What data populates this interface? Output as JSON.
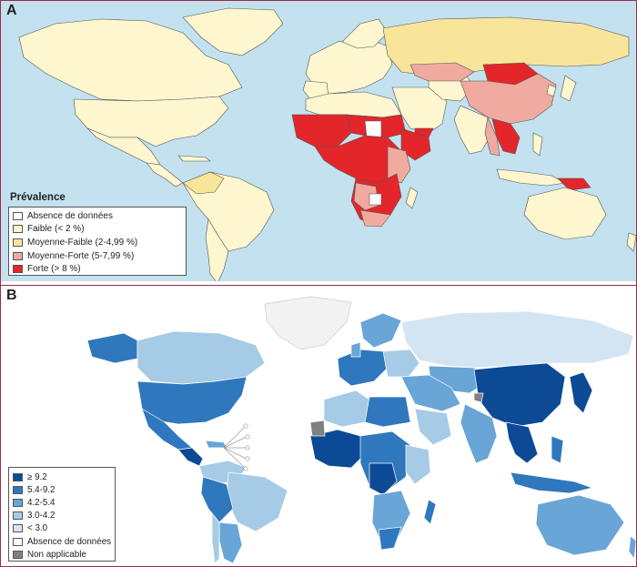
{
  "panel_a": {
    "letter": "A",
    "legend": {
      "title": "Prévalence",
      "items": [
        {
          "label": "Absence de données",
          "color": "#ffffff"
        },
        {
          "label": "Faible (< 2 %)",
          "color": "#fdf6cf"
        },
        {
          "label": "Moyenne-Faible (2-4,99 %)",
          "color": "#f8e59a"
        },
        {
          "label": "Moyenne-Forte (5-7,99 %)",
          "color": "#f0aaa0"
        },
        {
          "label": "Forte (> 8 %)",
          "color": "#e3262a"
        }
      ]
    }
  },
  "panel_b": {
    "letter": "B",
    "legend": {
      "items": [
        {
          "label": "≥ 9.2",
          "color": "#0c4a96"
        },
        {
          "label": "5.4-9.2",
          "color": "#2f78bd"
        },
        {
          "label": "4.2-5.4",
          "color": "#69a5d6"
        },
        {
          "label": "3.0-4.2",
          "color": "#a6cbe6"
        },
        {
          "label": "< 3.0",
          "color": "#d3e5f3"
        },
        {
          "label": "Absence de données",
          "color": "#ffffff"
        },
        {
          "label": "Non applicable",
          "color": "#808080"
        }
      ]
    }
  }
}
